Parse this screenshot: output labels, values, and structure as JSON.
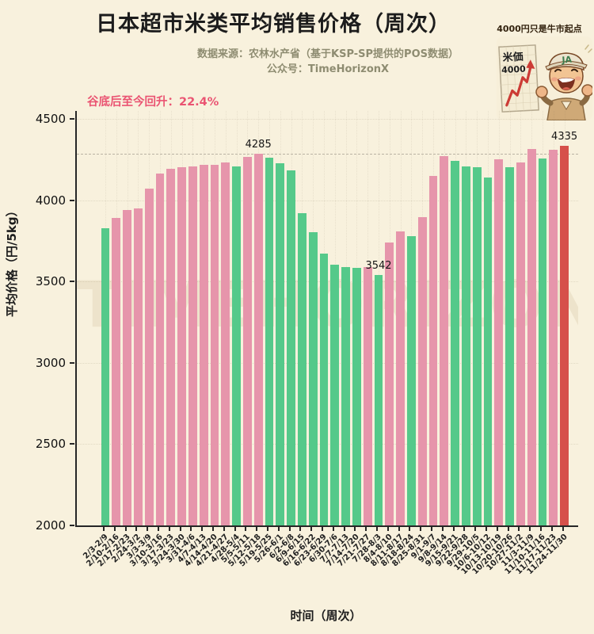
{
  "page": {
    "background": "#f8f1dd"
  },
  "header": {
    "title": "日本超市米类平均销售价格（周次）",
    "source_line": "数据来源：农林水产省（基于KSP-SP提供的POS数据）",
    "account_line": "公众号：TimeHorizonX",
    "annotation": {
      "text": "谷底后至今回升：22.4%",
      "color": "#ea5472"
    }
  },
  "mascot": {
    "caption": "4000円只是牛市起点",
    "sign_title": "米価",
    "sign_value": "4000",
    "cap_text": "JA"
  },
  "watermark": "TIMEHORIZON",
  "chart_data": {
    "type": "bar",
    "title": "日本超市米类平均销售价格（周次）",
    "xlabel": "时间（周次）",
    "ylabel": "平均价格（円/5kg）",
    "ylim": [
      2000,
      4550
    ],
    "yticks": [
      2000,
      2500,
      3000,
      3500,
      4000,
      4500
    ],
    "grid": "faint dotted both axes",
    "reference_line": {
      "value": 4285,
      "style": "dashed",
      "color": "#b9b2a3"
    },
    "palette": {
      "up": "#e695ab",
      "down": "#55c98a",
      "latest": "#d6504a"
    },
    "categories": [
      "2/3-2/9",
      "2/10-2/16",
      "2/17-2/23",
      "2/24-3/2",
      "3/3-3/9",
      "3/10-3/16",
      "3/17-3/23",
      "3/24-3/30",
      "3/31-4/6",
      "4/7-4/13",
      "4/14-4/20",
      "4/21-4/27",
      "4/28-5/4",
      "5/5-5/11",
      "5/12-5/18",
      "5/19-5/25",
      "5/26-6/1",
      "6/2-6/8",
      "6/9-6/15",
      "6/16-6/22",
      "6/23-6/29",
      "6/30-7/6",
      "7/7-7/13",
      "7/14-7/20",
      "7/21-7/27",
      "7/28-8/3",
      "8/4-8/10",
      "8/11-8/17",
      "8/18-8/24",
      "8/25-8/31",
      "9/1-9/7",
      "9/8-9/14",
      "9/15-9/21",
      "9/22-9/28",
      "9/29-10/5",
      "10/6-10/12",
      "10/13-10/19",
      "10/20-10/26",
      "10/27-11/2",
      "11/3-11/9",
      "11/10-11/16",
      "11/17-11/23",
      "11/24-11/30"
    ],
    "values": [
      3829,
      3892,
      3939,
      3952,
      4071,
      4167,
      4196,
      4204,
      4211,
      4217,
      4220,
      4232,
      4210,
      4268,
      4285,
      4260,
      4230,
      4182,
      3921,
      3804,
      3672,
      3606,
      3590,
      3585,
      3591,
      3542,
      3740,
      3809,
      3780,
      3896,
      4152,
      4270,
      4243,
      4211,
      4202,
      4141,
      4251,
      4206,
      4233,
      4314,
      4258,
      4311,
      4335
    ],
    "bar_states": [
      "down",
      "up",
      "up",
      "up",
      "up",
      "up",
      "up",
      "up",
      "up",
      "up",
      "up",
      "up",
      "down",
      "up",
      "up",
      "down",
      "down",
      "down",
      "down",
      "down",
      "down",
      "down",
      "down",
      "down",
      "up",
      "down",
      "up",
      "up",
      "down",
      "up",
      "up",
      "up",
      "down",
      "down",
      "down",
      "down",
      "up",
      "down",
      "up",
      "up",
      "down",
      "up",
      "latest"
    ],
    "annotated_points": [
      {
        "index": 14,
        "label": "4285"
      },
      {
        "index": 25,
        "label": "3542"
      },
      {
        "index": 42,
        "label": "4335"
      }
    ],
    "legend": "none"
  }
}
